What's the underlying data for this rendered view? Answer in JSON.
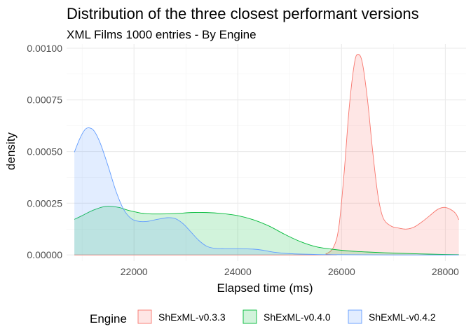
{
  "chart_data": {
    "type": "area",
    "title": "Distribution of the three closest performant versions",
    "subtitle": "XML Films 1000 entries - By Engine",
    "xlabel": "Elapsed time (ms)",
    "ylabel": "density",
    "xlim": [
      20700,
      28400
    ],
    "ylim": [
      -3e-05,
      0.00102
    ],
    "x_ticks": [
      22000,
      24000,
      26000,
      28000
    ],
    "x_tick_labels": [
      "22000",
      "24000",
      "26000",
      "28000"
    ],
    "y_ticks": [
      0,
      0.00025,
      0.0005,
      0.00075,
      0.001
    ],
    "y_tick_labels": [
      "0.00000",
      "0.00025",
      "0.00050",
      "0.00075",
      "0.00100"
    ],
    "grid": true,
    "legend": {
      "title": "Engine",
      "position": "bottom"
    },
    "series": [
      {
        "name": "ShExML-v0.3.3",
        "fill": "#F8766D",
        "points": [
          [
            20850,
            0
          ],
          [
            25500,
            0
          ],
          [
            25700,
            5e-06
          ],
          [
            25850,
            4e-05
          ],
          [
            25950,
            0.00014
          ],
          [
            26050,
            0.0004
          ],
          [
            26150,
            0.00072
          ],
          [
            26250,
            0.00093
          ],
          [
            26320,
            0.00097
          ],
          [
            26400,
            0.00093
          ],
          [
            26500,
            0.00075
          ],
          [
            26600,
            0.0005
          ],
          [
            26700,
            0.00029
          ],
          [
            26800,
            0.00018
          ],
          [
            26950,
            0.00014
          ],
          [
            27100,
            0.00013
          ],
          [
            27250,
            0.000125
          ],
          [
            27400,
            0.000135
          ],
          [
            27550,
            0.00016
          ],
          [
            27700,
            0.00019
          ],
          [
            27850,
            0.00022
          ],
          [
            27980,
            0.00023
          ],
          [
            28100,
            0.00022
          ],
          [
            28200,
            0.0002
          ],
          [
            28260,
            0.00017
          ]
        ]
      },
      {
        "name": "ShExML-v0.4.0",
        "fill": "#00BA38",
        "points": [
          [
            20850,
            0.000172
          ],
          [
            21000,
            0.00019
          ],
          [
            21200,
            0.000215
          ],
          [
            21450,
            0.000235
          ],
          [
            21700,
            0.00023
          ],
          [
            21900,
            0.000215
          ],
          [
            22200,
            0.0002
          ],
          [
            22500,
            0.000198
          ],
          [
            22800,
            0.0002
          ],
          [
            23100,
            0.000205
          ],
          [
            23400,
            0.000205
          ],
          [
            23700,
            0.0002
          ],
          [
            24000,
            0.00019
          ],
          [
            24300,
            0.00017
          ],
          [
            24600,
            0.00014
          ],
          [
            24900,
            0.0001
          ],
          [
            25200,
            6.5e-05
          ],
          [
            25500,
            4e-05
          ],
          [
            25800,
            2.8e-05
          ],
          [
            26100,
            2e-05
          ],
          [
            26500,
            1.4e-05
          ],
          [
            27000,
            9e-06
          ],
          [
            27500,
            5e-06
          ],
          [
            28000,
            2e-06
          ],
          [
            28260,
            1e-06
          ]
        ]
      },
      {
        "name": "ShExML-v0.4.2",
        "fill": "#619CFF",
        "points": [
          [
            20850,
            0.000497
          ],
          [
            20950,
            0.00056
          ],
          [
            21050,
            0.000605
          ],
          [
            21130,
            0.000615
          ],
          [
            21230,
            0.0006
          ],
          [
            21350,
            0.00054
          ],
          [
            21500,
            0.00043
          ],
          [
            21650,
            0.00031
          ],
          [
            21800,
            0.00022
          ],
          [
            21950,
            0.000175
          ],
          [
            22100,
            0.000162
          ],
          [
            22250,
            0.000162
          ],
          [
            22450,
            0.000172
          ],
          [
            22650,
            0.00018
          ],
          [
            22800,
            0.000175
          ],
          [
            22950,
            0.00015
          ],
          [
            23100,
            0.00011
          ],
          [
            23250,
            7e-05
          ],
          [
            23400,
            4.2e-05
          ],
          [
            23550,
            3.2e-05
          ],
          [
            23750,
            3e-05
          ],
          [
            24000,
            3e-05
          ],
          [
            24300,
            2.8e-05
          ],
          [
            24500,
            2.2e-05
          ],
          [
            24700,
            1.3e-05
          ],
          [
            25000,
            6e-06
          ],
          [
            25500,
            2e-06
          ],
          [
            26000,
            1e-06
          ],
          [
            27000,
            0
          ],
          [
            28260,
            0
          ]
        ]
      }
    ]
  }
}
